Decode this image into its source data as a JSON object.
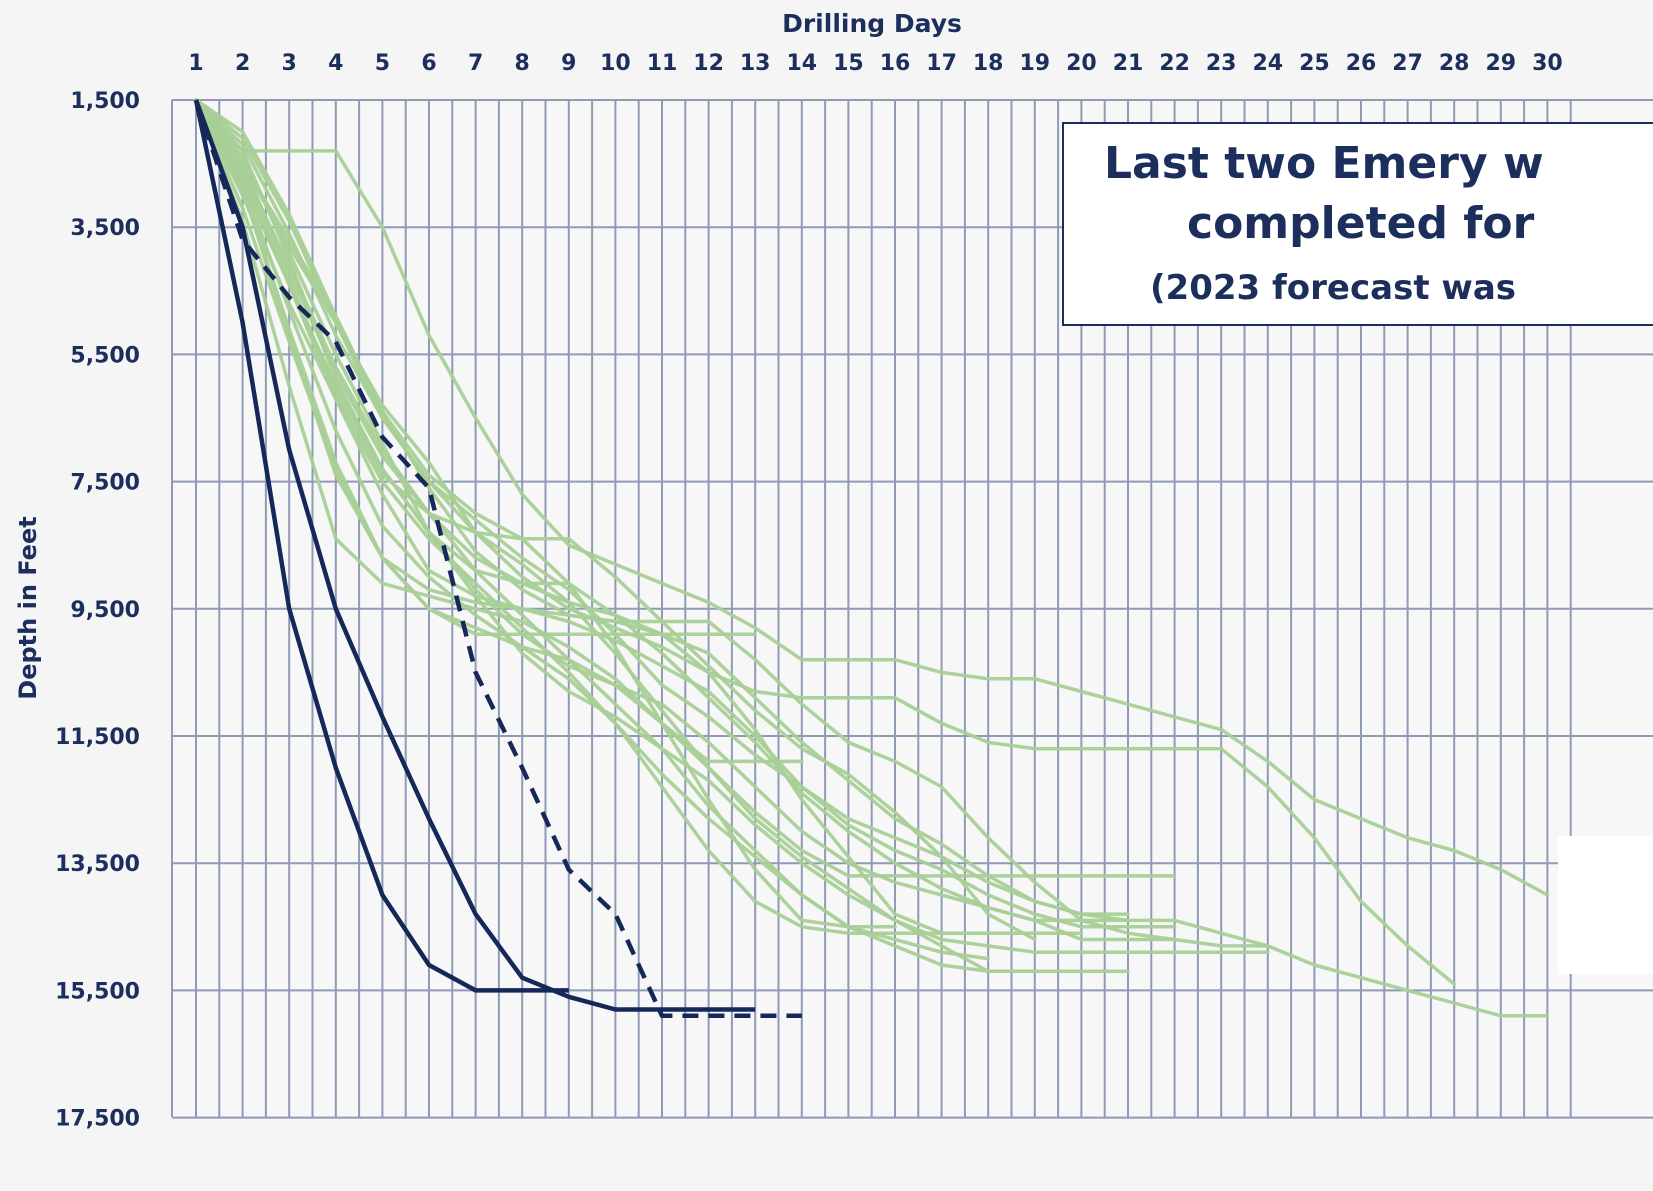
{
  "chart_data": {
    "type": "line",
    "xlabel": "Drilling Days",
    "ylabel": "Depth in Feet",
    "x_ticks": [
      "1",
      "2",
      "3",
      "4",
      "5",
      "6",
      "7",
      "8",
      "9",
      "10",
      "11",
      "12",
      "13",
      "14",
      "15",
      "16",
      "17",
      "18",
      "19",
      "20",
      "21",
      "22",
      "23",
      "24",
      "25",
      "26",
      "27",
      "28",
      "29",
      "30"
    ],
    "y_ticks": [
      "1,500",
      "3,500",
      "5,500",
      "7,500",
      "9,500",
      "11,500",
      "13,500",
      "15,500",
      "17,500"
    ],
    "xlim": [
      1,
      30
    ],
    "ylim": [
      1500,
      17500
    ],
    "y_inverted": true,
    "grid": true,
    "annotation": {
      "line1": "Last two Emery w",
      "line2": "completed for",
      "line3": "(2023 forecast was"
    },
    "colors": {
      "offset_wells": "#a8cf96",
      "recent_wells": "#16285a",
      "grid": "#8e9ab6",
      "text": "#1c2e5c"
    },
    "series": [
      {
        "style": "solid",
        "group": "recent",
        "x": [
          1,
          2,
          3,
          4,
          5,
          6,
          7,
          8,
          9,
          10,
          11,
          12,
          13
        ],
        "y": [
          1500,
          3500,
          7000,
          9500,
          11200,
          12800,
          14300,
          15300,
          15600,
          15800,
          15800,
          15800,
          15800
        ]
      },
      {
        "style": "solid",
        "group": "recent",
        "x": [
          1,
          2,
          3,
          4,
          5,
          6,
          7,
          8,
          9
        ],
        "y": [
          1500,
          5000,
          9500,
          12000,
          14000,
          15100,
          15500,
          15500,
          15500
        ]
      },
      {
        "style": "dashed",
        "group": "recent",
        "x": [
          1,
          2,
          3,
          4,
          5,
          6,
          7,
          8,
          9,
          10,
          11,
          12,
          13,
          14
        ],
        "y": [
          1500,
          3700,
          4600,
          5300,
          6800,
          7600,
          10500,
          12000,
          13600,
          14300,
          15900,
          15900,
          15900,
          15900
        ]
      },
      {
        "group": "offset",
        "x": [
          1,
          2,
          3,
          4,
          5,
          6,
          7,
          8,
          9,
          10,
          11,
          12,
          13,
          14,
          15,
          16,
          17,
          18,
          19,
          20,
          21,
          22,
          23,
          24,
          25,
          26,
          27,
          28,
          29,
          30
        ],
        "y": [
          1500,
          2300,
          2300,
          2300,
          3500,
          5200,
          6500,
          7700,
          8500,
          8800,
          9100,
          9400,
          9800,
          10300,
          10300,
          10300,
          10500,
          10600,
          10600,
          10800,
          11000,
          11200,
          11400,
          11900,
          12500,
          12800,
          13100,
          13300,
          13600,
          14000
        ]
      },
      {
        "group": "offset",
        "x": [
          1,
          2,
          3,
          4,
          5,
          6,
          7,
          8,
          9,
          10,
          11,
          12,
          13,
          14,
          15,
          16,
          17,
          18,
          19,
          20,
          21,
          22,
          23,
          24,
          25,
          26,
          27,
          28
        ],
        "y": [
          1500,
          2500,
          3800,
          5000,
          6300,
          7200,
          8300,
          9000,
          9500,
          9800,
          10100,
          10500,
          10800,
          10900,
          10900,
          10900,
          11300,
          11600,
          11700,
          11700,
          11700,
          11700,
          11700,
          12300,
          13100,
          14100,
          14800,
          15400
        ]
      },
      {
        "group": "offset",
        "x": [
          1,
          2,
          3,
          4,
          5,
          6,
          7,
          8,
          9,
          10,
          11,
          12,
          13,
          14,
          15,
          16,
          17,
          18,
          19,
          20,
          21,
          22,
          23,
          24,
          25,
          26,
          27,
          28,
          29,
          30
        ],
        "y": [
          1500,
          2200,
          3600,
          5200,
          6500,
          7500,
          8100,
          8700,
          9200,
          9900,
          10700,
          11200,
          11800,
          12300,
          12800,
          13100,
          13400,
          13800,
          14100,
          14300,
          14400,
          14400,
          14600,
          14800,
          15100,
          15300,
          15500,
          15700,
          15900,
          15900
        ]
      },
      {
        "group": "offset",
        "x": [
          1,
          2,
          3,
          4,
          5,
          6,
          7,
          8,
          9,
          10,
          11,
          12,
          13,
          14,
          15,
          16,
          17,
          18,
          19,
          20,
          21,
          22,
          23,
          24
        ],
        "y": [
          1500,
          2800,
          4400,
          6000,
          7300,
          8300,
          9300,
          10200,
          10800,
          11200,
          11700,
          12200,
          12900,
          13500,
          14000,
          14400,
          14700,
          14800,
          14900,
          14900,
          14900,
          14900,
          14900,
          14900
        ]
      },
      {
        "group": "offset",
        "x": [
          1,
          2,
          3,
          4,
          5,
          6,
          7,
          8,
          9,
          10,
          11,
          12,
          13,
          14,
          15,
          16,
          17,
          18,
          19,
          20,
          21
        ],
        "y": [
          1500,
          2500,
          4200,
          5800,
          7100,
          8000,
          8900,
          9600,
          10300,
          11000,
          11700,
          12600,
          13300,
          14000,
          14500,
          14800,
          15100,
          15200,
          15200,
          15200,
          15200
        ]
      },
      {
        "group": "offset",
        "x": [
          1,
          2,
          3,
          4,
          5,
          6,
          7,
          8,
          9,
          10,
          11,
          12,
          13,
          14,
          15,
          16,
          17,
          18,
          19,
          20
        ],
        "y": [
          1500,
          3000,
          4700,
          6200,
          7500,
          8400,
          9100,
          9800,
          10500,
          11300,
          12300,
          13300,
          14100,
          14500,
          14600,
          14600,
          14600,
          14600,
          14600,
          14600
        ]
      },
      {
        "group": "offset",
        "x": [
          1,
          2,
          3,
          4,
          5,
          6,
          7,
          8,
          9,
          10,
          11,
          12,
          13,
          14,
          15,
          16,
          17,
          18,
          19,
          20,
          21
        ],
        "y": [
          1500,
          2600,
          4100,
          5700,
          7000,
          8000,
          8700,
          9100,
          9400,
          9600,
          9900,
          10200,
          10900,
          11600,
          12200,
          12800,
          13200,
          13700,
          14100,
          14300,
          14300
        ]
      },
      {
        "group": "offset",
        "x": [
          1,
          2,
          3,
          4,
          5,
          6,
          7,
          8,
          9,
          10,
          11,
          12,
          13,
          14,
          15,
          16,
          17,
          18,
          19,
          20,
          21,
          22
        ],
        "y": [
          1500,
          2400,
          3900,
          5500,
          6900,
          8300,
          9200,
          9900,
          10400,
          10700,
          11000,
          11600,
          12300,
          13000,
          13500,
          13800,
          14000,
          14200,
          14400,
          14700,
          14700,
          14700
        ]
      },
      {
        "group": "offset",
        "x": [
          1,
          2,
          3,
          4,
          5,
          6,
          7,
          8,
          9,
          10,
          11,
          12,
          13,
          14,
          15,
          16,
          17,
          18,
          19,
          20,
          21,
          22
        ],
        "y": [
          1500,
          2700,
          4400,
          6200,
          7700,
          8900,
          9300,
          9500,
          9700,
          10000,
          10400,
          10800,
          11500,
          12300,
          12900,
          13300,
          13600,
          14000,
          14300,
          14500,
          14500,
          14500
        ]
      },
      {
        "group": "offset",
        "x": [
          1,
          2,
          3,
          4,
          5,
          6,
          7,
          8,
          9,
          10,
          11,
          12,
          13,
          14,
          15,
          16,
          17,
          18,
          19,
          20,
          21,
          22,
          23,
          24
        ],
        "y": [
          1500,
          2500,
          3700,
          4900,
          6400,
          7600,
          8600,
          9200,
          9600,
          9700,
          9700,
          9700,
          10300,
          11000,
          11600,
          11900,
          12300,
          13100,
          13800,
          14400,
          14600,
          14700,
          14800,
          14800
        ]
      },
      {
        "group": "offset",
        "x": [
          1,
          2,
          3,
          4,
          5,
          6,
          7,
          8,
          9,
          10,
          11,
          12,
          13,
          14,
          15,
          16,
          17,
          18,
          19
        ],
        "y": [
          1500,
          2600,
          4300,
          6100,
          7400,
          8000,
          8300,
          8400,
          8400,
          9000,
          9700,
          10400,
          11100,
          11700,
          12100,
          12700,
          13400,
          14300,
          14700
        ]
      },
      {
        "group": "offset",
        "x": [
          1,
          2,
          3,
          4,
          5,
          6,
          7,
          8,
          9,
          10,
          11,
          12,
          13,
          14,
          15,
          16,
          17,
          18
        ],
        "y": [
          1500,
          2800,
          4800,
          6700,
          8200,
          9000,
          9600,
          10100,
          10600,
          11300,
          12100,
          12800,
          13400,
          14000,
          14500,
          14700,
          14900,
          15000
        ]
      },
      {
        "group": "offset",
        "x": [
          1,
          2,
          3,
          4,
          5,
          6,
          7,
          8,
          9,
          10,
          11,
          12,
          13,
          14,
          15,
          16,
          17,
          18
        ],
        "y": [
          1500,
          3200,
          5300,
          7300,
          8700,
          9200,
          9400,
          9500,
          9600,
          9700,
          9900,
          10500,
          11400,
          12500,
          13400,
          14300,
          14600,
          14600
        ]
      },
      {
        "group": "offset",
        "x": [
          1,
          2,
          3,
          4,
          5,
          6,
          7,
          8,
          9,
          10,
          11,
          12,
          13,
          14,
          15,
          16,
          17,
          18,
          19,
          20,
          21,
          22
        ],
        "y": [
          1500,
          2900,
          5100,
          7200,
          8700,
          9500,
          9800,
          10100,
          10300,
          10700,
          11300,
          12000,
          12700,
          13300,
          13700,
          13700,
          13700,
          13700,
          13700,
          13700,
          13700,
          13700
        ]
      },
      {
        "group": "offset",
        "x": [
          1,
          2,
          3,
          4,
          5,
          6,
          7,
          8,
          9,
          10,
          11,
          12,
          13,
          14,
          15,
          16,
          17,
          18,
          19
        ],
        "y": [
          1500,
          2100,
          3400,
          5000,
          6500,
          7500,
          8300,
          8800,
          9400,
          10200,
          11100,
          12000,
          12800,
          13400,
          13900,
          14400,
          14800,
          15200,
          15200
        ]
      },
      {
        "group": "offset",
        "x": [
          1,
          2,
          3,
          4,
          5,
          6,
          7,
          8,
          9,
          10,
          11,
          12,
          13,
          14,
          15,
          16
        ],
        "y": [
          1500,
          2000,
          3300,
          4900,
          6400,
          7400,
          8000,
          8400,
          9100,
          10100,
          11300,
          12500,
          13600,
          14400,
          14500,
          14500
        ]
      },
      {
        "group": "offset",
        "x": [
          1,
          2,
          3,
          4,
          5,
          6,
          7,
          8,
          9,
          10,
          11,
          12,
          13,
          14,
          15,
          16,
          17,
          18,
          19,
          20,
          21
        ],
        "y": [
          1500,
          2300,
          4000,
          5900,
          7300,
          8300,
          8900,
          9100,
          9100,
          9600,
          10200,
          10900,
          11600,
          12400,
          13000,
          13500,
          13900,
          14200,
          14400,
          14400,
          14400
        ]
      },
      {
        "group": "offset",
        "x": [
          1,
          2,
          3,
          4,
          5,
          6,
          7,
          8,
          9,
          10,
          11,
          12,
          13,
          14
        ],
        "y": [
          1500,
          3400,
          6000,
          8400,
          9100,
          9300,
          9500,
          9700,
          10100,
          10600,
          11300,
          11900,
          11900,
          11900
        ]
      },
      {
        "group": "offset",
        "x": [
          1,
          2,
          3,
          4,
          5,
          6,
          7,
          8,
          9,
          10,
          11,
          12,
          13
        ],
        "y": [
          1500,
          2900,
          5200,
          7400,
          8700,
          9500,
          9900,
          9900,
          9900,
          9900,
          9900,
          9900,
          9900
        ]
      }
    ]
  }
}
